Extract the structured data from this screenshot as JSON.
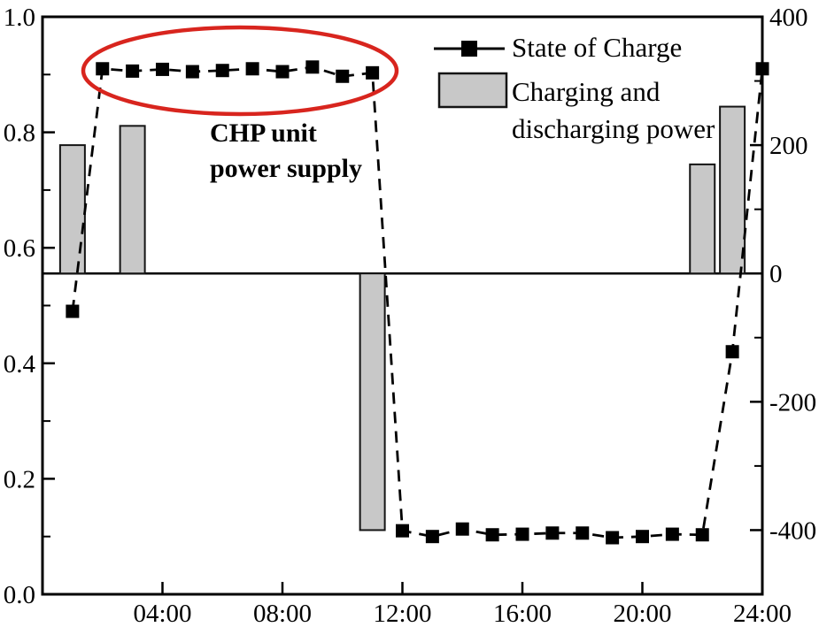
{
  "chart_data": {
    "type": "line+bar",
    "title": "",
    "xlabel": "",
    "ylabel_left": "",
    "ylabel_right": "",
    "x_axis": {
      "unit": "time of day",
      "range_hours": [
        0,
        24
      ],
      "major_tick_hours": [
        4,
        8,
        12,
        16,
        20,
        24
      ],
      "tick_labels": [
        "04:00",
        "08:00",
        "12:00",
        "16:00",
        "20:00",
        "24:00"
      ],
      "minor_ticks": "none"
    },
    "left_axis": {
      "applies_to": "State of Charge",
      "range": [
        0.0,
        1.0
      ],
      "major_tick_values": [
        0.0,
        0.2,
        0.4,
        0.6,
        0.8,
        1.0
      ],
      "major_tick_labels": [
        "0.0",
        "0.2",
        "0.4",
        "0.6",
        "0.8",
        "1.0"
      ],
      "minor_tick_values": [
        0.1,
        0.3,
        0.5,
        0.7,
        0.9
      ]
    },
    "right_axis": {
      "applies_to": "Charging and discharging power",
      "range": [
        -500,
        400
      ],
      "major_tick_values": [
        400,
        200,
        0,
        -200,
        -400
      ],
      "major_tick_labels": [
        "400",
        "200",
        "0",
        "-200",
        "-400"
      ],
      "minor_tick_values": [
        300,
        100,
        -100,
        -300
      ]
    },
    "series": [
      {
        "name": "State of Charge",
        "type": "line",
        "axis": "left",
        "line_style": "dashed black with filled square markers",
        "x_hours": [
          1,
          2,
          3,
          4,
          5,
          6,
          7,
          8,
          9,
          10,
          11,
          12,
          13,
          14,
          15,
          16,
          17,
          18,
          19,
          20,
          21,
          22,
          23,
          24
        ],
        "values": [
          0.49,
          0.91,
          0.906,
          0.909,
          0.905,
          0.907,
          0.91,
          0.905,
          0.913,
          0.897,
          0.903,
          0.11,
          0.1,
          0.113,
          0.103,
          0.104,
          0.106,
          0.106,
          0.098,
          0.1,
          0.104,
          0.103,
          0.42,
          0.91
        ]
      },
      {
        "name": "Charging and discharging power",
        "type": "bar",
        "axis": "right",
        "x_hours": [
          1,
          3,
          11,
          22,
          23
        ],
        "values": [
          200,
          230,
          -400,
          170,
          260
        ]
      }
    ],
    "zero_line": {
      "axis": "right",
      "value": 0
    },
    "legend": {
      "position": "top-right inside plot",
      "line_label": "State of Charge",
      "bar_label_line1": "Charging and",
      "bar_label_line2": "discharging power"
    },
    "annotation": {
      "shape": "red ellipse around the high state-of-charge plateau",
      "text_line1": "CHP unit",
      "text_line2": "power supply"
    },
    "colors": {
      "line": "#000000",
      "marker": "#000000",
      "bar_fill": "#c8c8c8",
      "bar_border": "#141414",
      "frame": "#000000",
      "annotation_red": "#d8251e",
      "background": "#ffffff"
    },
    "grid": "off"
  }
}
